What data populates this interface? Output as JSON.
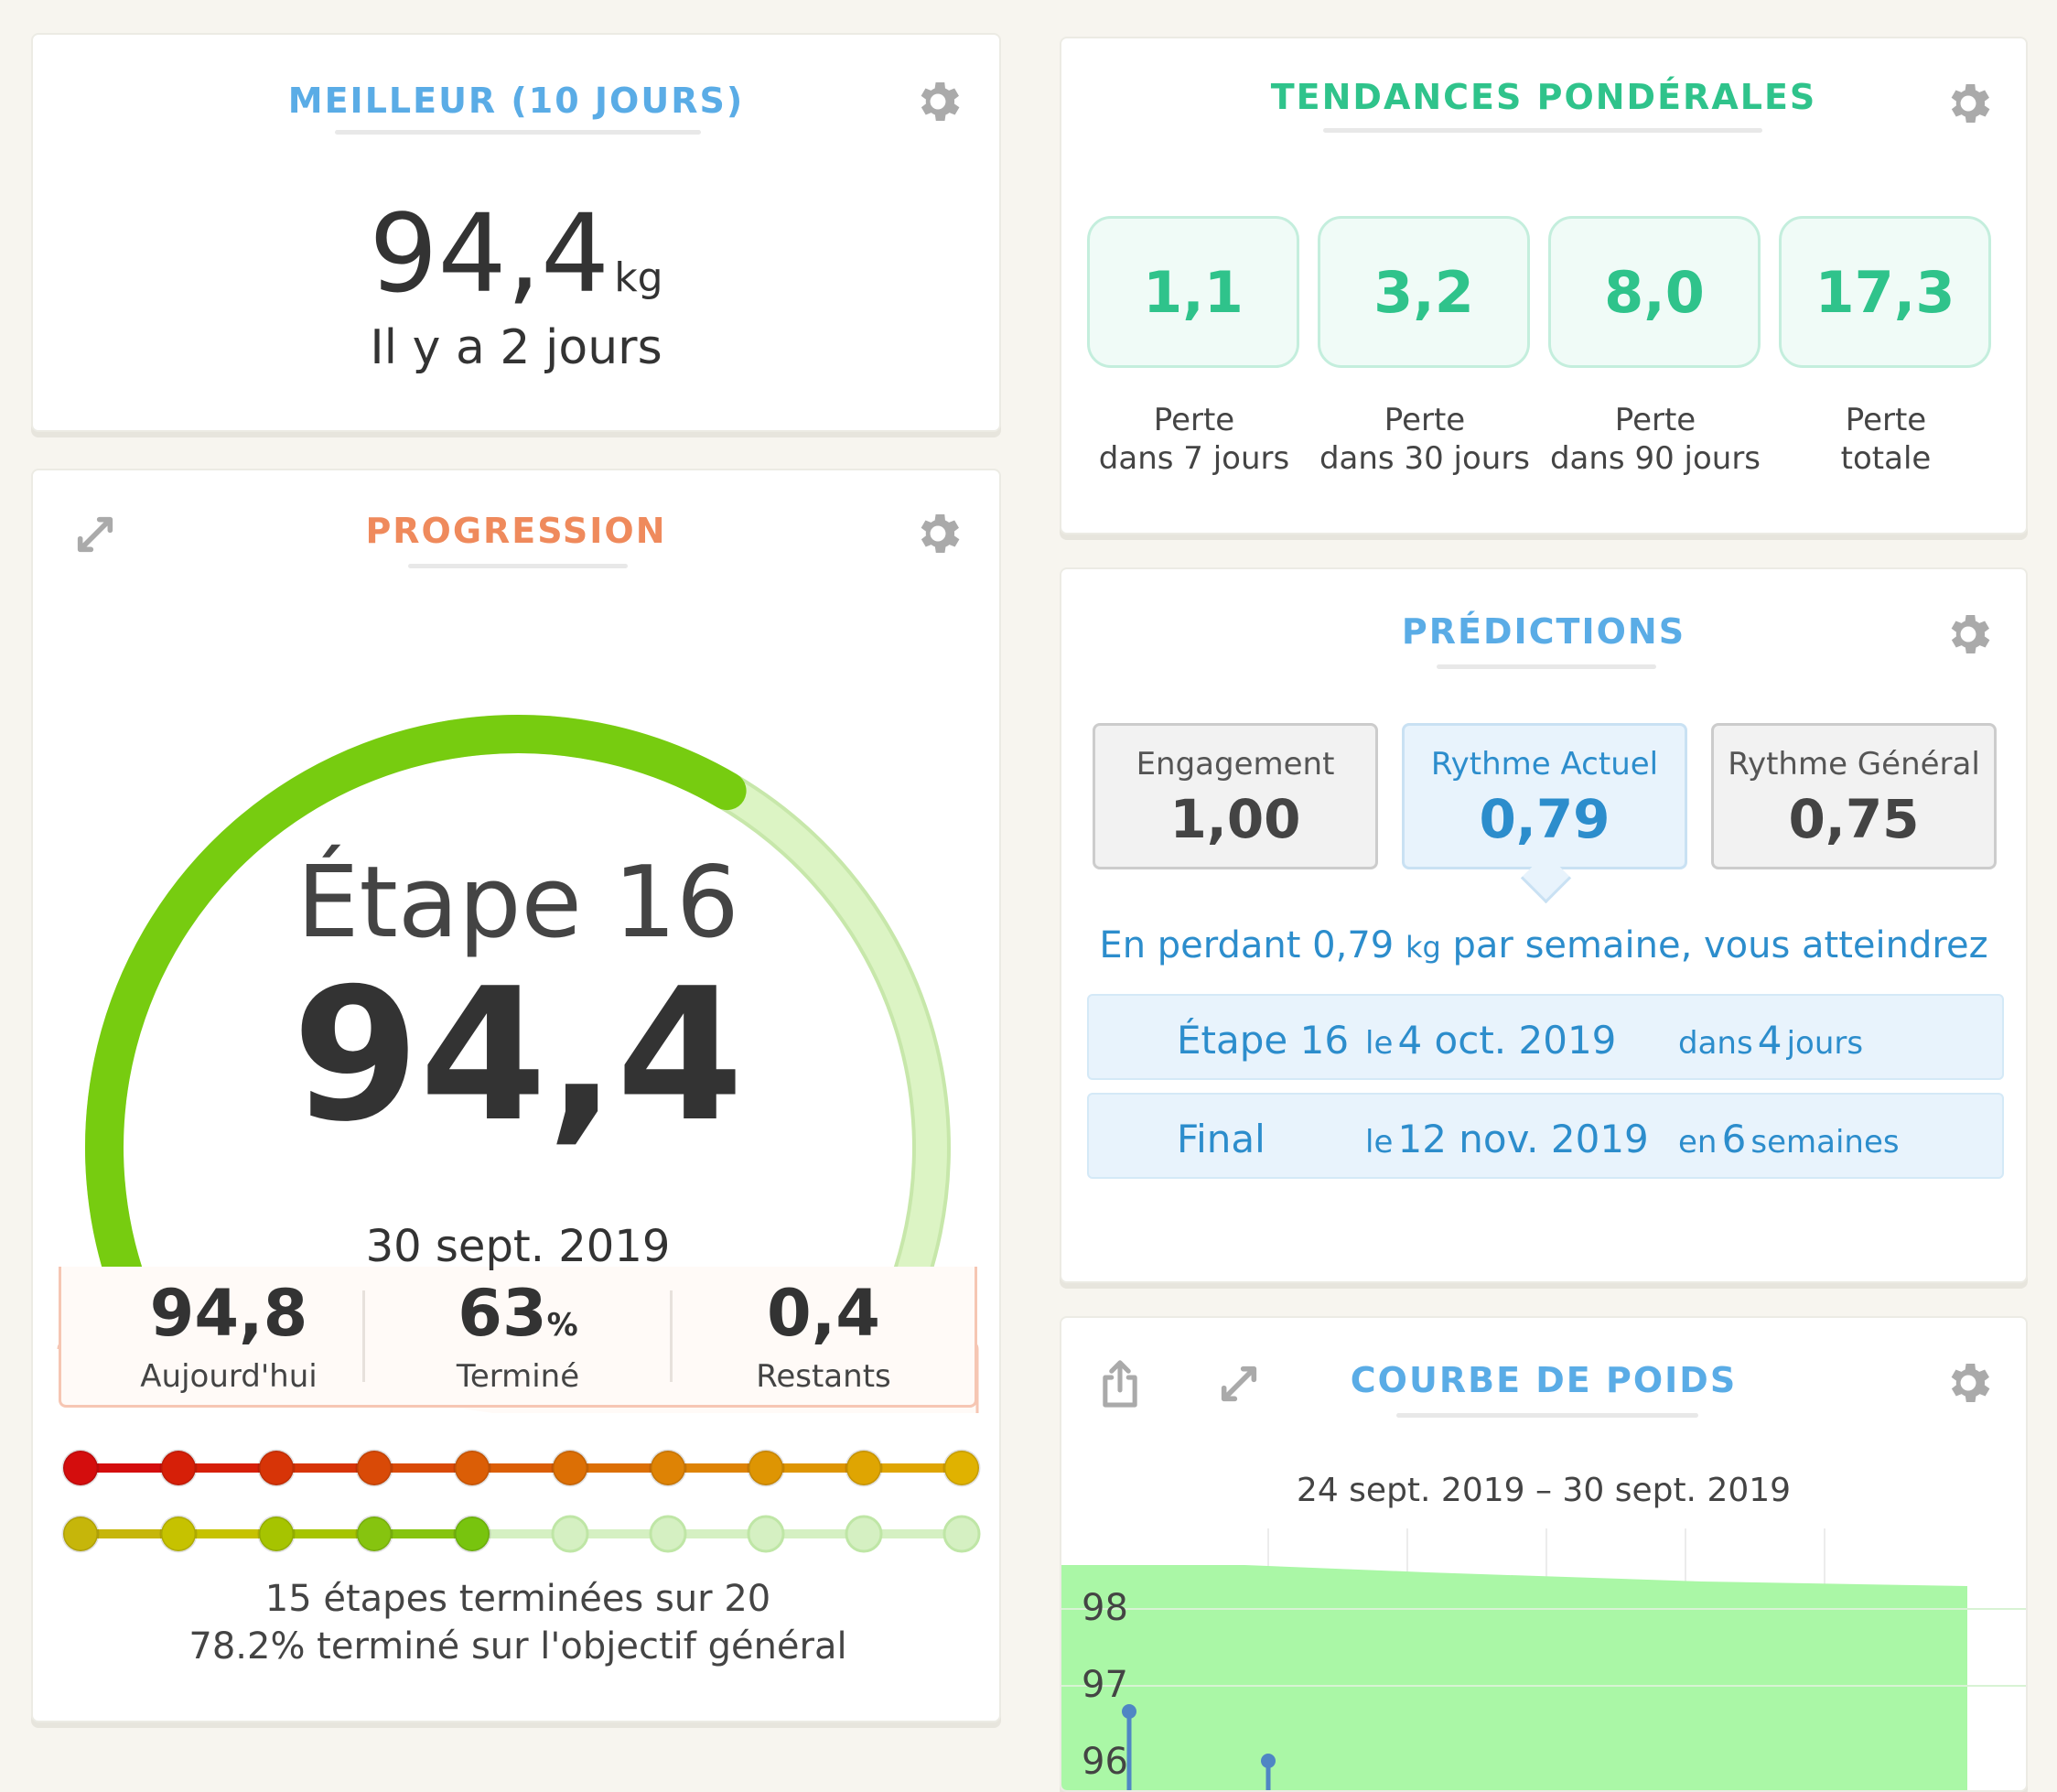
{
  "colors": {
    "blue": "#5aace6",
    "green": "#2fc38b",
    "orange": "#ef8a5c",
    "gauge_green": "#77cc10",
    "gauge_light": "#d7f2c0",
    "pred_blue": "#2c8dcc",
    "chart_fill": "#aaf7a6"
  },
  "best": {
    "title": "MEILLEUR (10 JOURS)",
    "value": "94,4",
    "unit": "kg",
    "when": "Il y a 2 jours"
  },
  "progress": {
    "title": "PROGRESSION",
    "step": "Étape 16",
    "value": "94,4",
    "date": "30 sept. 2019",
    "gauge_fraction": 0.63,
    "stats": [
      {
        "value": "94,8",
        "unit": "",
        "label": "Aujourd'hui"
      },
      {
        "value": "63",
        "unit": "%",
        "label": "Terminé"
      },
      {
        "value": "0,4",
        "unit": "",
        "label": "Restants"
      }
    ],
    "row1_colors": [
      "#d40d0d",
      "#d61f08",
      "#d73407",
      "#d94a07",
      "#db5e06",
      "#dc6f05",
      "#de8305",
      "#de9503",
      "#dfa502",
      "#e0b200"
    ],
    "row2_colors": [
      "#c6b60a",
      "#c6c200",
      "#a6c400",
      "#86c40f",
      "#78c40e",
      "#d5f0c2",
      "#d5f0c2",
      "#d5f0c2",
      "#d5f0c2",
      "#d5f0c2"
    ],
    "row2_done": 5,
    "summary1": "15 étapes terminées sur 20",
    "summary2": "78.2% terminé sur l'objectif général"
  },
  "trends": {
    "title": "TENDANCES PONDÉRALES",
    "items": [
      {
        "value": "1,1",
        "line1": "Perte",
        "line2": "dans 7 jours"
      },
      {
        "value": "3,2",
        "line1": "Perte",
        "line2": "dans 30 jours"
      },
      {
        "value": "8,0",
        "line1": "Perte",
        "line2": "dans 90 jours"
      },
      {
        "value": "17,3",
        "line1": "Perte",
        "line2": "totale"
      }
    ]
  },
  "predictions": {
    "title": "PRÉDICTIONS",
    "boxes": [
      {
        "label": "Engagement",
        "value": "1,00"
      },
      {
        "label": "Rythme Actuel",
        "value": "0,79"
      },
      {
        "label": "Rythme Général",
        "value": "0,75"
      }
    ],
    "selected_index": 1,
    "sentence_a": "En perdant 0,79",
    "sentence_unit": "kg",
    "sentence_b": "par semaine, vous atteindrez",
    "rows": [
      {
        "name": "Étape 16",
        "le": "le",
        "date": "4 oct. 2019",
        "in": "dans",
        "n": "4",
        "period": "jours"
      },
      {
        "name": "Final",
        "le": "le",
        "date": "12 nov. 2019",
        "in": "en",
        "n": "6",
        "period": "semaines"
      }
    ]
  },
  "weight_chart": {
    "title": "COURBE DE POIDS",
    "range": "24 sept. 2019 – 30 sept. 2019",
    "ticks": [
      "98",
      "97",
      "96"
    ]
  }
}
